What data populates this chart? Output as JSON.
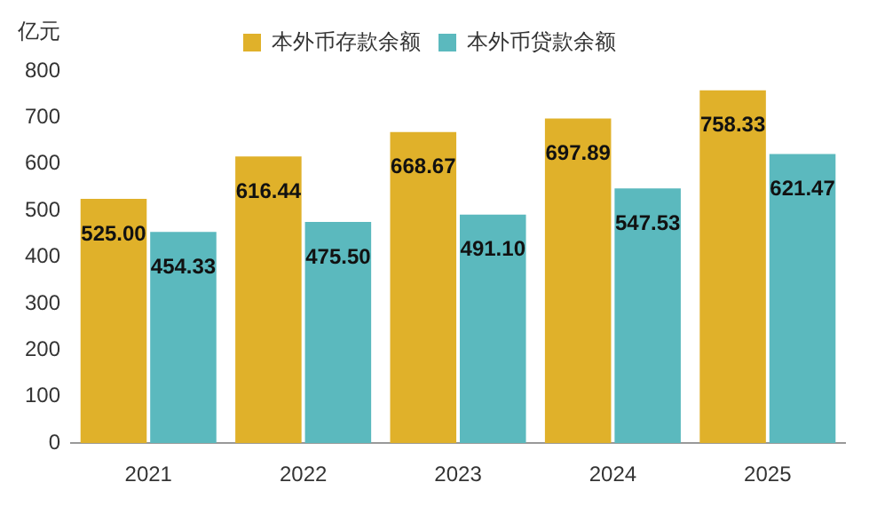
{
  "chart_data": {
    "type": "bar",
    "ylabel": "亿元",
    "categories": [
      "2021",
      "2022",
      "2023",
      "2024",
      "2025"
    ],
    "series": [
      {
        "name": "本外币存款余额",
        "color": "#e0b12a",
        "values": [
          525.0,
          616.44,
          668.67,
          697.89,
          758.33
        ],
        "value_labels": [
          "525.00",
          "616.44",
          "668.67",
          "697.89",
          "758.33"
        ]
      },
      {
        "name": "本外币贷款余额",
        "color": "#5bb9be",
        "values": [
          454.33,
          475.5,
          491.1,
          547.53,
          621.47
        ],
        "value_labels": [
          "454.33",
          "475.50",
          "491.10",
          "547.53",
          "621.47"
        ]
      }
    ],
    "ylim": [
      0,
      800
    ],
    "yticks": [
      0,
      100,
      200,
      300,
      400,
      500,
      600,
      700,
      800
    ],
    "grid": false,
    "legend": "top"
  }
}
